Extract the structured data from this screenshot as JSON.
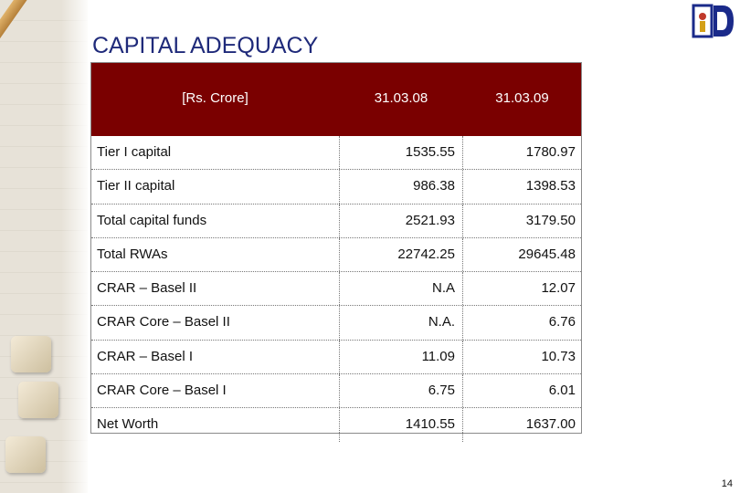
{
  "title": "CAPITAL ADEQUACY",
  "table": {
    "headers": [
      "[Rs. Crore]",
      "31.03.08",
      "31.03.09"
    ],
    "rows": [
      {
        "label": "Tier I capital",
        "v1": "1535.55",
        "v2": "1780.97"
      },
      {
        "label": "Tier II capital",
        "v1": "986.38",
        "v2": "1398.53"
      },
      {
        "label": "Total capital funds",
        "v1": "2521.93",
        "v2": "3179.50"
      },
      {
        "label": "Total RWAs",
        "v1": "22742.25",
        "v2": "29645.48"
      },
      {
        "label": "CRAR – Basel II",
        "v1": "N.A",
        "v2": "12.07"
      },
      {
        "label": "CRAR Core – Basel II",
        "v1": "N.A.",
        "v2": "6.76"
      },
      {
        "label": "CRAR – Basel I",
        "v1": "11.09",
        "v2": "10.73"
      },
      {
        "label": "CRAR Core – Basel I",
        "v1": "6.75",
        "v2": "6.01"
      },
      {
        "label": "Net Worth",
        "v1": "1410.55",
        "v2": "1637.00"
      }
    ]
  },
  "page_number": "14",
  "colors": {
    "header_bg": "#7a0000",
    "title": "#1f2a7a",
    "logo": "#1a2a8a"
  },
  "logo_icon": "bank-logo-icon"
}
